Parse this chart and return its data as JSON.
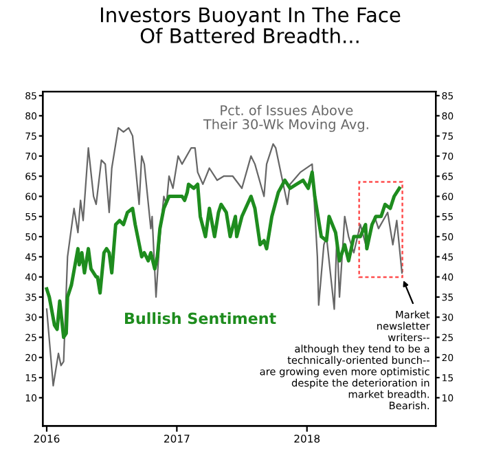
{
  "chart_data": {
    "type": "line",
    "title": "Investors Buoyant In The Face\nOf Battered Breadth...",
    "series": [
      {
        "name": "Pct. of Issues Above\nTheir 30-Wk Moving Avg.",
        "color": "#666666",
        "x": [
          2016.0,
          2016.05,
          2016.09,
          2016.11,
          2016.13,
          2016.16,
          2016.21,
          2016.24,
          2016.26,
          2016.28,
          2016.32,
          2016.36,
          2016.38,
          2016.42,
          2016.45,
          2016.48,
          2016.5,
          2016.55,
          2016.59,
          2016.63,
          2016.66,
          2016.71,
          2016.73,
          2016.75,
          2016.8,
          2016.81,
          2016.84,
          2016.87,
          2016.9,
          2016.92,
          2016.94,
          2016.97,
          2017.01,
          2017.04,
          2017.11,
          2017.14,
          2017.16,
          2017.2,
          2017.25,
          2017.31,
          2017.36,
          2017.43,
          2017.5,
          2017.57,
          2017.6,
          2017.67,
          2017.69,
          2017.74,
          2017.76,
          2017.85,
          2017.87,
          2017.95,
          2018.04,
          2018.08,
          2018.09,
          2018.13,
          2018.15,
          2018.21,
          2018.23,
          2018.25,
          2018.29,
          2018.32,
          2018.36,
          2018.41,
          2018.46,
          2018.52,
          2018.55,
          2018.62,
          2018.66,
          2018.69,
          2018.73
        ],
        "values": [
          32,
          13,
          21,
          18,
          19,
          45,
          57,
          51,
          59,
          54,
          72,
          60,
          58,
          69,
          68,
          56,
          67,
          77,
          76,
          77,
          75,
          58,
          70,
          68,
          52,
          55,
          35,
          50,
          60,
          58,
          65,
          62,
          70,
          68,
          72,
          72,
          66,
          63,
          67,
          64,
          65,
          65,
          62,
          70,
          68,
          60,
          68,
          73,
          72,
          58,
          63,
          66,
          68,
          45,
          33,
          48,
          50,
          32,
          50,
          35,
          55,
          50,
          46,
          53,
          47,
          55,
          52,
          56,
          48,
          54,
          41
        ]
      },
      {
        "name": "Bullish Sentiment",
        "color": "#1e8c1e",
        "x": [
          2016.0,
          2016.02,
          2016.06,
          2016.08,
          2016.1,
          2016.13,
          2016.15,
          2016.16,
          2016.19,
          2016.24,
          2016.25,
          2016.27,
          2016.29,
          2016.32,
          2016.34,
          2016.38,
          2016.39,
          2016.41,
          2016.44,
          2016.46,
          2016.48,
          2016.5,
          2016.53,
          2016.56,
          2016.59,
          2016.62,
          2016.66,
          2016.68,
          2016.73,
          2016.75,
          2016.78,
          2016.8,
          2016.83,
          2016.85,
          2016.87,
          2016.9,
          2016.94,
          2017.01,
          2017.04,
          2017.06,
          2017.08,
          2017.09,
          2017.13,
          2017.16,
          2017.18,
          2017.22,
          2017.25,
          2017.29,
          2017.32,
          2017.34,
          2017.38,
          2017.41,
          2017.45,
          2017.46,
          2017.5,
          2017.57,
          2017.6,
          2017.64,
          2017.67,
          2017.69,
          2017.73,
          2017.78,
          2017.83,
          2017.87,
          2017.92,
          2017.97,
          2018.01,
          2018.04,
          2018.06,
          2018.11,
          2018.15,
          2018.17,
          2018.22,
          2018.25,
          2018.29,
          2018.32,
          2018.36,
          2018.41,
          2018.45,
          2018.46,
          2018.5,
          2018.53,
          2018.57,
          2018.6,
          2018.64,
          2018.67,
          2018.71
        ],
        "values": [
          37,
          35,
          28,
          27,
          34,
          25,
          26,
          35,
          38,
          47,
          43,
          46,
          41,
          47,
          42,
          40,
          40,
          36,
          46,
          47,
          46,
          41,
          53,
          54,
          53,
          56,
          57,
          53,
          45,
          46,
          44,
          46,
          42,
          45,
          52,
          57,
          60,
          60,
          60,
          59,
          61,
          63,
          62,
          63,
          55,
          50,
          57,
          50,
          56,
          58,
          56,
          50,
          55,
          50,
          55,
          60,
          57,
          48,
          49,
          47,
          55,
          61,
          64,
          62,
          63,
          64,
          62,
          66,
          60,
          50,
          49,
          55,
          51,
          44,
          48,
          44,
          50,
          50,
          53,
          47,
          53,
          55,
          55,
          58,
          57,
          60,
          62
        ]
      }
    ],
    "xlim": [
      2015.97,
      2018.99
    ],
    "xticks": [
      2016,
      2017,
      2018
    ],
    "ylim": [
      3,
      86
    ],
    "yticks": [
      10,
      15,
      20,
      25,
      30,
      35,
      40,
      45,
      50,
      55,
      60,
      65,
      70,
      75,
      80,
      85
    ],
    "y2lim": [
      3,
      86
    ],
    "y2ticks": [
      10,
      15,
      20,
      25,
      30,
      35,
      40,
      45,
      50,
      55,
      60,
      65,
      70,
      75,
      80,
      85
    ],
    "grid": false,
    "legend": false,
    "marker": "none",
    "line_style": "solid",
    "annotations": [
      {
        "text": "Market",
        "x": 2018.73,
        "y": 40
      },
      "newsletter",
      "writers--",
      "although they tend to be a",
      "technically-oriented bunch--",
      "are growing even more optimistic",
      "despite the deterioration in",
      "market breadth.",
      "Bearish."
    ]
  }
}
